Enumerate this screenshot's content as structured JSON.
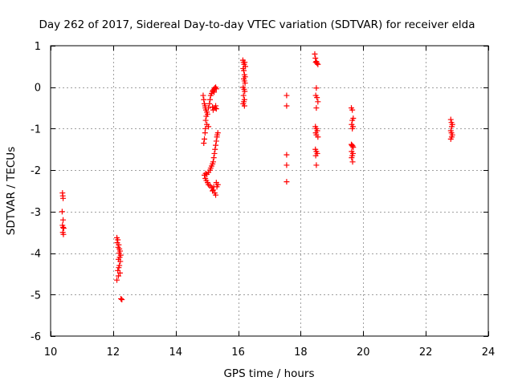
{
  "chart_data": {
    "type": "scatter",
    "title": "Day 262 of 2017, Sidereal Day-to-day VTEC variation (SDTVAR) for receiver elda",
    "xlabel": "GPS time / hours",
    "ylabel": "SDTVAR / TECUs",
    "xlim": [
      10,
      24
    ],
    "ylim": [
      -6,
      1
    ],
    "grid": true,
    "marker": "+",
    "marker_color": "#ff0000",
    "x_ticks": [
      10,
      12,
      14,
      16,
      18,
      20,
      22,
      24
    ],
    "y_ticks": [
      1,
      0,
      -1,
      -2,
      -3,
      -4,
      -5,
      -6
    ],
    "x_tick_labels": [
      "10",
      "12",
      "14",
      "16",
      "18",
      "20",
      "22",
      "24"
    ],
    "y_tick_labels": [
      "1",
      "0",
      "-1",
      "-2",
      "-3",
      "-4",
      "-5",
      "-6"
    ],
    "series": [
      {
        "name": "SDTVAR",
        "points": [
          [
            10.38,
            -2.55
          ],
          [
            10.39,
            -2.62
          ],
          [
            10.4,
            -2.68
          ],
          [
            10.37,
            -3.0
          ],
          [
            10.4,
            -3.2
          ],
          [
            10.38,
            -3.33
          ],
          [
            10.4,
            -3.38
          ],
          [
            10.42,
            -3.4
          ],
          [
            10.39,
            -3.5
          ],
          [
            10.41,
            -3.55
          ],
          [
            12.12,
            -3.63
          ],
          [
            12.15,
            -3.68
          ],
          [
            12.13,
            -3.75
          ],
          [
            12.18,
            -3.8
          ],
          [
            12.16,
            -3.86
          ],
          [
            12.2,
            -3.9
          ],
          [
            12.22,
            -3.95
          ],
          [
            12.19,
            -4.0
          ],
          [
            12.24,
            -4.05
          ],
          [
            12.21,
            -4.1
          ],
          [
            12.17,
            -4.15
          ],
          [
            12.23,
            -4.2
          ],
          [
            12.2,
            -4.3
          ],
          [
            12.18,
            -4.35
          ],
          [
            12.15,
            -4.42
          ],
          [
            12.22,
            -4.48
          ],
          [
            12.17,
            -4.55
          ],
          [
            12.12,
            -4.65
          ],
          [
            12.25,
            -5.1
          ],
          [
            12.28,
            -5.12
          ],
          [
            14.88,
            -0.2
          ],
          [
            14.9,
            -0.3
          ],
          [
            14.92,
            -0.4
          ],
          [
            14.94,
            -0.45
          ],
          [
            14.95,
            -0.5
          ],
          [
            14.97,
            -0.55
          ],
          [
            15.0,
            -0.6
          ],
          [
            14.98,
            -0.7
          ],
          [
            15.02,
            -0.65
          ],
          [
            15.05,
            -0.5
          ],
          [
            15.08,
            -0.4
          ],
          [
            15.1,
            -0.3
          ],
          [
            15.12,
            -0.2
          ],
          [
            15.15,
            -0.15
          ],
          [
            15.18,
            -0.1
          ],
          [
            15.2,
            -0.08
          ],
          [
            15.22,
            -0.05
          ],
          [
            15.25,
            -0.02
          ],
          [
            15.28,
            0.0
          ],
          [
            15.3,
            -0.04
          ],
          [
            15.23,
            -0.12
          ],
          [
            15.26,
            -0.5
          ],
          [
            15.28,
            -0.45
          ],
          [
            15.3,
            -0.52
          ],
          [
            15.2,
            -0.55
          ],
          [
            15.18,
            -0.48
          ],
          [
            14.96,
            -0.8
          ],
          [
            14.95,
            -1.0
          ],
          [
            14.94,
            -1.1
          ],
          [
            14.92,
            -1.25
          ],
          [
            14.9,
            -1.35
          ],
          [
            15.05,
            -0.95
          ],
          [
            15.0,
            -0.9
          ],
          [
            15.35,
            -1.1
          ],
          [
            15.33,
            -1.15
          ],
          [
            15.32,
            -1.2
          ],
          [
            15.3,
            -1.3
          ],
          [
            15.28,
            -1.4
          ],
          [
            15.26,
            -1.5
          ],
          [
            15.24,
            -1.6
          ],
          [
            15.22,
            -1.7
          ],
          [
            15.2,
            -1.8
          ],
          [
            15.18,
            -1.85
          ],
          [
            15.15,
            -1.9
          ],
          [
            15.12,
            -1.95
          ],
          [
            15.1,
            -2.0
          ],
          [
            15.05,
            -2.05
          ],
          [
            15.0,
            -2.1
          ],
          [
            14.96,
            -2.08
          ],
          [
            14.92,
            -2.12
          ],
          [
            14.95,
            -2.2
          ],
          [
            14.98,
            -2.25
          ],
          [
            15.02,
            -2.3
          ],
          [
            15.05,
            -2.35
          ],
          [
            15.1,
            -2.38
          ],
          [
            15.15,
            -2.42
          ],
          [
            15.2,
            -2.48
          ],
          [
            15.25,
            -2.55
          ],
          [
            15.28,
            -2.6
          ],
          [
            15.32,
            -2.4
          ],
          [
            15.35,
            -2.35
          ],
          [
            15.3,
            -2.3
          ],
          [
            15.22,
            -2.4
          ],
          [
            15.18,
            -2.5
          ],
          [
            16.15,
            0.65
          ],
          [
            16.17,
            0.6
          ],
          [
            16.19,
            0.55
          ],
          [
            16.21,
            0.6
          ],
          [
            16.23,
            0.5
          ],
          [
            16.16,
            0.45
          ],
          [
            16.18,
            0.4
          ],
          [
            16.2,
            0.3
          ],
          [
            16.22,
            0.25
          ],
          [
            16.18,
            0.2
          ],
          [
            16.2,
            0.15
          ],
          [
            16.22,
            0.1
          ],
          [
            16.16,
            0.0
          ],
          [
            16.19,
            -0.05
          ],
          [
            16.21,
            -0.1
          ],
          [
            16.17,
            -0.2
          ],
          [
            16.2,
            -0.3
          ],
          [
            16.18,
            -0.35
          ],
          [
            16.16,
            -0.4
          ],
          [
            16.2,
            -0.45
          ],
          [
            17.55,
            -0.2
          ],
          [
            17.55,
            -0.45
          ],
          [
            17.55,
            -1.63
          ],
          [
            17.55,
            -1.88
          ],
          [
            17.55,
            -2.28
          ],
          [
            18.45,
            0.8
          ],
          [
            18.47,
            0.7
          ],
          [
            18.5,
            0.62
          ],
          [
            18.52,
            0.58
          ],
          [
            18.55,
            0.55
          ],
          [
            18.48,
            0.6
          ],
          [
            18.5,
            -0.02
          ],
          [
            18.48,
            -0.2
          ],
          [
            18.52,
            -0.25
          ],
          [
            18.55,
            -0.35
          ],
          [
            18.5,
            -0.5
          ],
          [
            18.47,
            -0.95
          ],
          [
            18.5,
            -1.0
          ],
          [
            18.53,
            -1.05
          ],
          [
            18.48,
            -1.1
          ],
          [
            18.5,
            -1.15
          ],
          [
            18.55,
            -1.2
          ],
          [
            18.47,
            -1.5
          ],
          [
            18.5,
            -1.55
          ],
          [
            18.53,
            -1.6
          ],
          [
            18.48,
            -1.65
          ],
          [
            18.5,
            -1.88
          ],
          [
            19.62,
            -0.5
          ],
          [
            19.65,
            -0.55
          ],
          [
            19.68,
            -0.75
          ],
          [
            19.65,
            -0.8
          ],
          [
            19.63,
            -0.9
          ],
          [
            19.67,
            -0.95
          ],
          [
            19.65,
            -1.0
          ],
          [
            19.62,
            -1.38
          ],
          [
            19.64,
            -1.4
          ],
          [
            19.66,
            -1.42
          ],
          [
            19.68,
            -1.45
          ],
          [
            19.63,
            -1.55
          ],
          [
            19.67,
            -1.6
          ],
          [
            19.65,
            -1.65
          ],
          [
            19.63,
            -1.7
          ],
          [
            19.66,
            -1.8
          ],
          [
            22.8,
            -0.78
          ],
          [
            22.82,
            -0.85
          ],
          [
            22.85,
            -0.9
          ],
          [
            22.83,
            -0.95
          ],
          [
            22.8,
            -1.05
          ],
          [
            22.82,
            -1.1
          ],
          [
            22.85,
            -1.15
          ],
          [
            22.83,
            -1.2
          ],
          [
            22.8,
            -1.25
          ]
        ]
      }
    ]
  }
}
